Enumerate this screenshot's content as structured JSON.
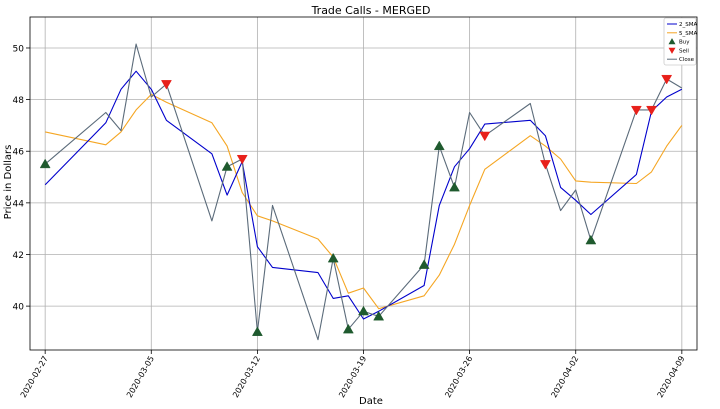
{
  "chart_data": {
    "type": "line",
    "title": "Trade Calls - MERGED",
    "xlabel": "Date",
    "ylabel": "Price in Dollars",
    "ylim": [
      38.3,
      51.2
    ],
    "xlim": [
      "2020-02-26",
      "2020-04-10"
    ],
    "xticks": [
      "2020-02-27",
      "2020-03-05",
      "2020-03-12",
      "2020-03-19",
      "2020-03-26",
      "2020-04-02",
      "2020-04-09"
    ],
    "yticks": [
      40,
      42,
      44,
      46,
      48,
      50
    ],
    "grid": true,
    "legend_position": "top-right",
    "colors": {
      "sma2": "#0000cc",
      "sma5": "#f5a623",
      "close": "#5b6b7a",
      "buy": "#1f5a2e",
      "sell": "#e8201a"
    },
    "series": [
      {
        "name": "2_SMA",
        "x": [
          "2020-02-27",
          "2020-03-02",
          "2020-03-03",
          "2020-03-04",
          "2020-03-05",
          "2020-03-06",
          "2020-03-09",
          "2020-03-10",
          "2020-03-11",
          "2020-03-12",
          "2020-03-13",
          "2020-03-16",
          "2020-03-17",
          "2020-03-18",
          "2020-03-19",
          "2020-03-20",
          "2020-03-23",
          "2020-03-24",
          "2020-03-25",
          "2020-03-26",
          "2020-03-27",
          "2020-03-30",
          "2020-03-31",
          "2020-04-01",
          "2020-04-02",
          "2020-04-03",
          "2020-04-06",
          "2020-04-07",
          "2020-04-08",
          "2020-04-09"
        ],
        "y": [
          44.7,
          47.1,
          48.4,
          49.1,
          48.4,
          47.2,
          45.9,
          44.3,
          45.6,
          42.3,
          41.5,
          41.3,
          40.3,
          40.4,
          39.5,
          39.8,
          40.8,
          43.9,
          45.4,
          46.1,
          47.05,
          47.2,
          46.6,
          44.6,
          44.1,
          43.55,
          45.1,
          47.55,
          48.1,
          48.4
        ]
      },
      {
        "name": "5_SMA",
        "x": [
          "2020-02-27",
          "2020-03-02",
          "2020-03-03",
          "2020-03-04",
          "2020-03-05",
          "2020-03-06",
          "2020-03-09",
          "2020-03-10",
          "2020-03-11",
          "2020-03-12",
          "2020-03-13",
          "2020-03-16",
          "2020-03-17",
          "2020-03-18",
          "2020-03-19",
          "2020-03-20",
          "2020-03-23",
          "2020-03-24",
          "2020-03-25",
          "2020-03-26",
          "2020-03-27",
          "2020-03-30",
          "2020-03-31",
          "2020-04-01",
          "2020-04-02",
          "2020-04-03",
          "2020-04-06",
          "2020-04-07",
          "2020-04-08",
          "2020-04-09"
        ],
        "y": [
          46.75,
          46.25,
          46.75,
          47.6,
          48.2,
          47.9,
          47.1,
          46.2,
          44.4,
          43.5,
          43.3,
          42.6,
          41.9,
          40.5,
          40.7,
          39.9,
          40.4,
          41.2,
          42.4,
          43.9,
          45.3,
          46.6,
          46.2,
          45.7,
          44.85,
          44.8,
          44.75,
          45.2,
          46.2,
          47.0
        ]
      },
      {
        "name": "Close",
        "x": [
          "2020-02-27",
          "2020-03-02",
          "2020-03-03",
          "2020-03-04",
          "2020-03-05",
          "2020-03-06",
          "2020-03-09",
          "2020-03-10",
          "2020-03-11",
          "2020-03-12",
          "2020-03-13",
          "2020-03-16",
          "2020-03-17",
          "2020-03-18",
          "2020-03-19",
          "2020-03-20",
          "2020-03-23",
          "2020-03-24",
          "2020-03-25",
          "2020-03-26",
          "2020-03-27",
          "2020-03-30",
          "2020-03-31",
          "2020-04-01",
          "2020-04-02",
          "2020-04-03",
          "2020-04-06",
          "2020-04-07",
          "2020-04-08",
          "2020-04-09"
        ],
        "y": [
          45.5,
          47.5,
          46.8,
          50.15,
          48.1,
          48.6,
          43.3,
          45.4,
          45.7,
          39.0,
          43.9,
          38.7,
          41.85,
          39.1,
          39.8,
          39.6,
          41.6,
          46.2,
          44.6,
          47.5,
          46.6,
          47.85,
          45.5,
          43.7,
          44.5,
          42.55,
          47.6,
          47.6,
          48.8,
          48.45
        ]
      }
    ],
    "markers": [
      {
        "name": "Buy",
        "symbol": "triangle-up",
        "x": [
          "2020-02-27",
          "2020-03-10",
          "2020-03-12",
          "2020-03-17",
          "2020-03-18",
          "2020-03-19",
          "2020-03-20",
          "2020-03-23",
          "2020-03-24",
          "2020-03-25",
          "2020-04-03"
        ],
        "y": [
          45.5,
          45.4,
          39.0,
          41.85,
          39.1,
          39.8,
          39.6,
          41.6,
          46.2,
          44.6,
          42.55
        ]
      },
      {
        "name": "Sell",
        "symbol": "triangle-down",
        "x": [
          "2020-03-06",
          "2020-03-11",
          "2020-03-27",
          "2020-03-31",
          "2020-04-06",
          "2020-04-07",
          "2020-04-08"
        ],
        "y": [
          48.6,
          45.7,
          46.6,
          45.5,
          47.6,
          47.6,
          48.8
        ]
      }
    ],
    "legend": [
      {
        "label": "2_SMA",
        "kind": "line",
        "color_key": "sma2"
      },
      {
        "label": "5_SMA",
        "kind": "line",
        "color_key": "sma5"
      },
      {
        "label": "Buy",
        "kind": "triangle-up",
        "color_key": "buy"
      },
      {
        "label": "Sell",
        "kind": "triangle-down",
        "color_key": "sell"
      },
      {
        "label": "Close",
        "kind": "line",
        "color_key": "close"
      }
    ]
  }
}
